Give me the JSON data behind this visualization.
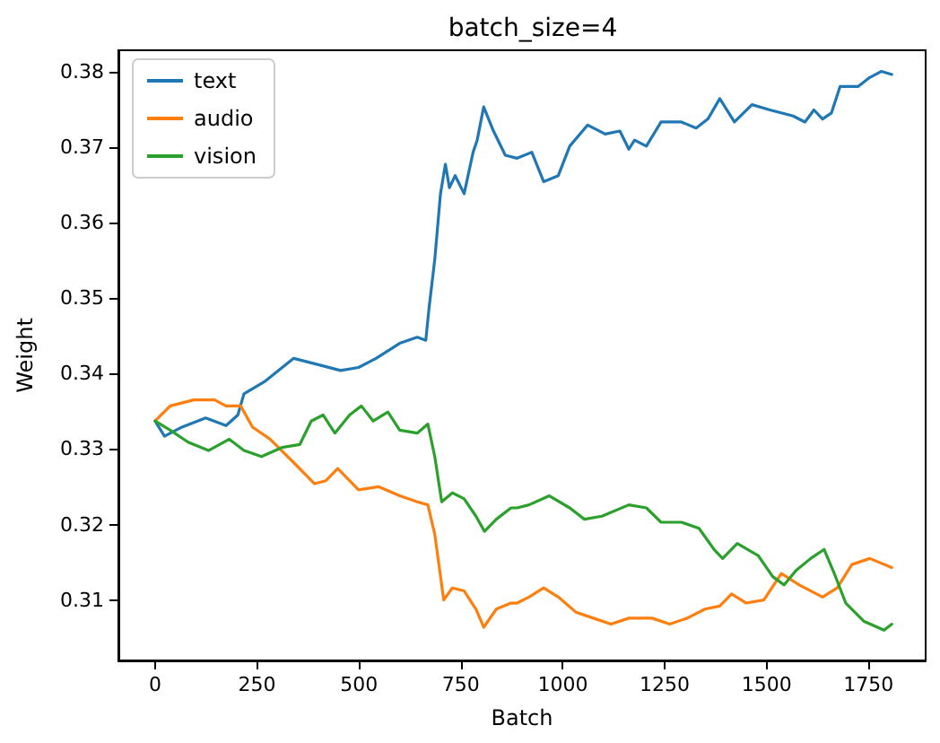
{
  "chart_data": {
    "type": "line",
    "title": "batch_size=4",
    "xlabel": "Batch",
    "ylabel": "Weight",
    "xlim": [
      -90,
      1890
    ],
    "xticks": [
      0,
      250,
      500,
      750,
      1000,
      1250,
      1500,
      1750
    ],
    "ylim": [
      0.302,
      0.3828
    ],
    "yticks": [
      0.31,
      0.32,
      0.33,
      0.34,
      0.35,
      0.36,
      0.37,
      0.38
    ],
    "grid": false,
    "legend": "top left",
    "series": [
      {
        "name": "text",
        "color": "#1f77b4",
        "x": [
          0,
          23,
          66,
          124,
          174,
          203,
          218,
          268,
          340,
          398,
          455,
          499,
          542,
          600,
          643,
          664,
          672,
          686,
          700,
          712,
          722,
          736,
          758,
          780,
          790,
          806,
          830,
          859,
          888,
          924,
          953,
          989,
          1017,
          1061,
          1104,
          1140,
          1162,
          1176,
          1205,
          1241,
          1291,
          1327,
          1356,
          1385,
          1421,
          1464,
          1508,
          1565,
          1594,
          1616,
          1637,
          1659,
          1680,
          1724,
          1753,
          1781,
          1807
        ],
        "values": [
          0.3337,
          0.3317,
          0.3329,
          0.3341,
          0.3331,
          0.3345,
          0.3373,
          0.3389,
          0.342,
          0.3412,
          0.3404,
          0.3408,
          0.342,
          0.344,
          0.3448,
          0.3444,
          0.3487,
          0.3551,
          0.3638,
          0.3677,
          0.3646,
          0.3662,
          0.3638,
          0.3693,
          0.3709,
          0.3753,
          0.3721,
          0.3689,
          0.3685,
          0.3693,
          0.3654,
          0.3662,
          0.3701,
          0.3729,
          0.3717,
          0.3721,
          0.3697,
          0.3709,
          0.3701,
          0.3733,
          0.3733,
          0.3725,
          0.3737,
          0.3764,
          0.3733,
          0.3756,
          0.3749,
          0.3741,
          0.3733,
          0.3749,
          0.3737,
          0.3745,
          0.378,
          0.378,
          0.3792,
          0.38,
          0.3796
        ]
      },
      {
        "name": "audio",
        "color": "#ff7f0e",
        "x": [
          0,
          37,
          95,
          146,
          174,
          210,
          239,
          282,
          340,
          391,
          419,
          448,
          499,
          549,
          600,
          643,
          669,
          686,
          708,
          729,
          758,
          787,
          806,
          837,
          873,
          888,
          917,
          953,
          989,
          1032,
          1075,
          1118,
          1162,
          1219,
          1262,
          1305,
          1349,
          1385,
          1414,
          1450,
          1493,
          1536,
          1580,
          1637,
          1673,
          1709,
          1753,
          1807
        ],
        "values": [
          0.3337,
          0.3357,
          0.3365,
          0.3365,
          0.3357,
          0.3357,
          0.3329,
          0.3313,
          0.3282,
          0.3254,
          0.3258,
          0.3274,
          0.3246,
          0.325,
          0.3238,
          0.323,
          0.3226,
          0.3187,
          0.31,
          0.3116,
          0.3112,
          0.3088,
          0.3064,
          0.3088,
          0.3096,
          0.3096,
          0.3104,
          0.3116,
          0.3104,
          0.3084,
          0.3076,
          0.3068,
          0.3076,
          0.3076,
          0.3068,
          0.3076,
          0.3088,
          0.3092,
          0.3108,
          0.3096,
          0.31,
          0.3135,
          0.312,
          0.3104,
          0.3116,
          0.3147,
          0.3155,
          0.3143
        ]
      },
      {
        "name": "vision",
        "color": "#2ca02c",
        "x": [
          0,
          37,
          81,
          131,
          182,
          218,
          261,
          311,
          355,
          383,
          412,
          441,
          477,
          506,
          535,
          571,
          600,
          643,
          669,
          686,
          703,
          729,
          758,
          787,
          808,
          837,
          873,
          888,
          917,
          967,
          1017,
          1053,
          1096,
          1162,
          1205,
          1241,
          1291,
          1334,
          1371,
          1392,
          1428,
          1479,
          1515,
          1543,
          1572,
          1608,
          1641,
          1666,
          1694,
          1738,
          1788,
          1807
        ],
        "values": [
          0.3337,
          0.3325,
          0.3309,
          0.3298,
          0.3313,
          0.3298,
          0.329,
          0.3302,
          0.3306,
          0.3337,
          0.3345,
          0.3321,
          0.3345,
          0.3357,
          0.3337,
          0.3349,
          0.3325,
          0.3321,
          0.3333,
          0.329,
          0.323,
          0.3242,
          0.3234,
          0.3211,
          0.3191,
          0.3207,
          0.3222,
          0.3222,
          0.3226,
          0.3238,
          0.3222,
          0.3207,
          0.3211,
          0.3226,
          0.3222,
          0.3203,
          0.3203,
          0.3195,
          0.3167,
          0.3155,
          0.3175,
          0.3159,
          0.3131,
          0.312,
          0.3139,
          0.3155,
          0.3167,
          0.3135,
          0.3096,
          0.3072,
          0.306,
          0.3068
        ]
      }
    ]
  }
}
